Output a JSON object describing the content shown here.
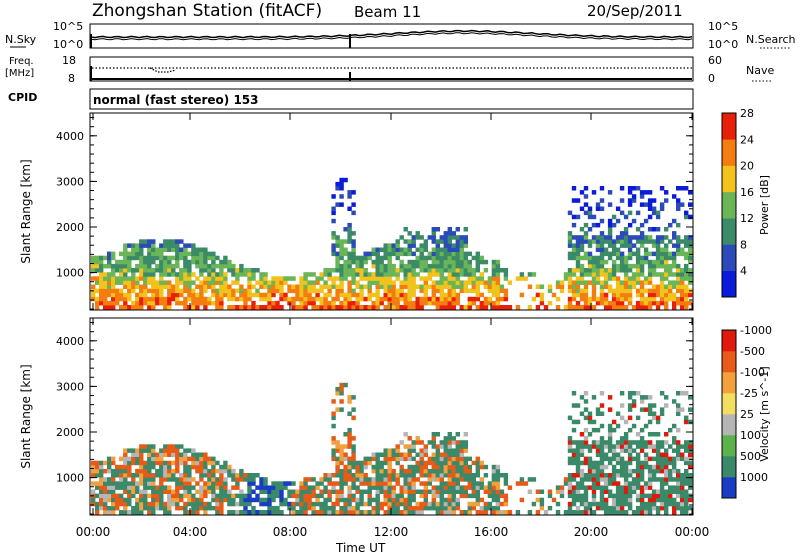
{
  "header": {
    "title": "Zhongshan Station (fitACF)",
    "beam": "Beam 11",
    "date": "20/Sep/2011"
  },
  "noise_panel": {
    "left_label": "N.Sky",
    "left_tick_top": "10^5",
    "left_tick_bottom": "10^0",
    "right_tick_top": "10^5",
    "right_tick_bottom": "10^0",
    "right_label": "N.Search"
  },
  "freq_panel": {
    "left_label_1": "Freq.",
    "left_label_2": "[MHz]",
    "left_tick_top": "18",
    "left_tick_bottom": "8",
    "right_tick_top": "60",
    "right_tick_bottom": "0",
    "right_label": "Nave"
  },
  "cpid": {
    "label": "CPID",
    "text": "normal (fast stereo) 153"
  },
  "chart_data": [
    {
      "type": "heatmap",
      "ylabel": "Slant Range [km]",
      "xlabel": "",
      "y_ticks": [
        "1000",
        "2000",
        "3000",
        "4000"
      ],
      "ylim": [
        180,
        4500
      ],
      "colorbar": {
        "label": "Power [dB]",
        "ticks": [
          "4",
          "8",
          "12",
          "16",
          "20",
          "24",
          "28"
        ],
        "colors": [
          "#0a1cd9",
          "#2a4bb8",
          "#3b8a68",
          "#6ab558",
          "#f2c21d",
          "#f57d0f",
          "#e8200a"
        ]
      }
    },
    {
      "type": "heatmap",
      "ylabel": "Slant Range [km]",
      "xlabel": "Time UT",
      "y_ticks": [
        "1000",
        "2000",
        "3000",
        "4000"
      ],
      "ylim": [
        180,
        4500
      ],
      "colorbar": {
        "label": "Velocity [m s^-1]",
        "ticks": [
          "1000",
          "500",
          "100",
          "25",
          "-25",
          "-100",
          "-500",
          "-1000"
        ],
        "colors": [
          "#1a3cc4",
          "#3a8a6a",
          "#5cb34c",
          "#b5b5b5",
          "#f2df60",
          "#f2a13c",
          "#e85a18",
          "#e01a0a"
        ]
      }
    }
  ],
  "time_axis": {
    "ticks": [
      "00:00",
      "04:00",
      "08:00",
      "12:00",
      "16:00",
      "20:00",
      "00:00"
    ],
    "label": "Time UT"
  }
}
